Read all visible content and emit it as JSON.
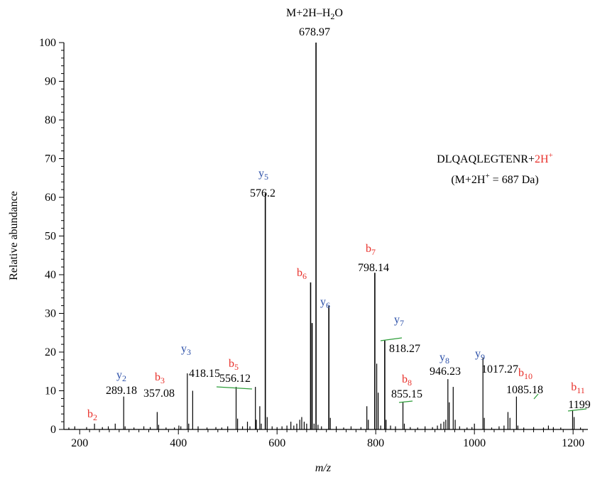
{
  "chart_data": {
    "type": "bar",
    "title": "",
    "xlabel": "m/z",
    "ylabel": "Relative abundance",
    "xlim": [
      168,
      1230
    ],
    "ylim": [
      0,
      100
    ],
    "x_ticks": [
      200,
      400,
      600,
      800,
      1000,
      1200
    ],
    "y_ticks": [
      0,
      10,
      20,
      30,
      40,
      50,
      60,
      70,
      80,
      90,
      100
    ],
    "colors": {
      "b_ion": "#e8302a",
      "y_ion": "#2b4fa8",
      "leader": "#2e9e3a",
      "peak": "#000000"
    },
    "annotations": {
      "peptide_main": "DLQAQLEGTENR+",
      "peptide_charge": "2H",
      "peptide_charge_sup": "+",
      "mass_prefix": "(M+2H",
      "mass_sup": "+",
      "mass_suffix": " = 687 Da)",
      "precursor_prefix": "M+2H–H",
      "precursor_sub": "2",
      "precursor_suffix": "O"
    },
    "labeled_peaks": [
      {
        "mz": 678.97,
        "intensity": 100,
        "label": "678.97"
      },
      {
        "mz": 576.2,
        "intensity": 61,
        "label": "576.2",
        "ion": "y",
        "ion_num": "5"
      },
      {
        "mz": 798.14,
        "intensity": 40.5,
        "label": "798.14",
        "ion": "b",
        "ion_num": "7"
      },
      {
        "mz": 668.0,
        "intensity": 38,
        "ion": "b",
        "ion_num": "6"
      },
      {
        "mz": 705.0,
        "intensity": 32,
        "ion": "y",
        "ion_num": "6"
      },
      {
        "mz": 818.27,
        "intensity": 23,
        "label": "818.27",
        "ion": "y",
        "ion_num": "7"
      },
      {
        "mz": 1017.27,
        "intensity": 18.5,
        "label": "1017.27",
        "ion": "y",
        "ion_num": "9"
      },
      {
        "mz": 946.23,
        "intensity": 13,
        "label": "946.23",
        "ion": "y",
        "ion_num": "8"
      },
      {
        "mz": 418.15,
        "intensity": 14.5,
        "label": "418.15",
        "ion": "y",
        "ion_num": "3"
      },
      {
        "mz": 556.12,
        "intensity": 11,
        "label": "556.12",
        "ion": "b",
        "ion_num": "5"
      },
      {
        "mz": 289.18,
        "intensity": 8.5,
        "label": "289.18",
        "ion": "y",
        "ion_num": "2"
      },
      {
        "mz": 1085.18,
        "intensity": 8.5,
        "label": "1085.18",
        "ion": "b",
        "ion_num": "10"
      },
      {
        "mz": 855.15,
        "intensity": 7,
        "label": "855.15",
        "ion": "b",
        "ion_num": "8"
      },
      {
        "mz": 357.08,
        "intensity": 4.5,
        "label": "357.08",
        "ion": "b",
        "ion_num": "3"
      },
      {
        "mz": 1199,
        "intensity": 5,
        "label": "1199",
        "ion": "b",
        "ion_num": "11"
      },
      {
        "mz": 230,
        "intensity": 1.5,
        "ion": "b",
        "ion_num": "2"
      }
    ],
    "peaks": [
      {
        "mz": 178,
        "intensity": 0.5
      },
      {
        "mz": 190,
        "intensity": 0.8
      },
      {
        "mz": 214,
        "intensity": 0.6
      },
      {
        "mz": 230,
        "intensity": 1.5
      },
      {
        "mz": 246,
        "intensity": 0.6
      },
      {
        "mz": 258,
        "intensity": 0.8
      },
      {
        "mz": 272,
        "intensity": 1.5
      },
      {
        "mz": 289.18,
        "intensity": 8.5
      },
      {
        "mz": 292,
        "intensity": 0.8
      },
      {
        "mz": 310,
        "intensity": 0.5
      },
      {
        "mz": 330,
        "intensity": 0.8
      },
      {
        "mz": 343,
        "intensity": 0.6
      },
      {
        "mz": 357.08,
        "intensity": 4.5
      },
      {
        "mz": 360,
        "intensity": 1.2
      },
      {
        "mz": 375,
        "intensity": 0.5
      },
      {
        "mz": 392,
        "intensity": 0.5
      },
      {
        "mz": 401,
        "intensity": 1.0
      },
      {
        "mz": 405,
        "intensity": 0.8
      },
      {
        "mz": 418.15,
        "intensity": 14.5
      },
      {
        "mz": 421,
        "intensity": 1.5
      },
      {
        "mz": 429,
        "intensity": 10
      },
      {
        "mz": 440,
        "intensity": 0.8
      },
      {
        "mz": 458,
        "intensity": 0.5
      },
      {
        "mz": 476,
        "intensity": 0.6
      },
      {
        "mz": 488,
        "intensity": 0.5
      },
      {
        "mz": 500,
        "intensity": 0.8
      },
      {
        "mz": 517,
        "intensity": 11
      },
      {
        "mz": 520,
        "intensity": 2.8
      },
      {
        "mz": 530,
        "intensity": 0.8
      },
      {
        "mz": 540,
        "intensity": 2.0
      },
      {
        "mz": 545,
        "intensity": 0.8
      },
      {
        "mz": 556.12,
        "intensity": 11
      },
      {
        "mz": 558,
        "intensity": 2.5
      },
      {
        "mz": 565,
        "intensity": 6
      },
      {
        "mz": 568,
        "intensity": 1.5
      },
      {
        "mz": 576.2,
        "intensity": 61
      },
      {
        "mz": 580,
        "intensity": 3.2
      },
      {
        "mz": 590,
        "intensity": 0.8
      },
      {
        "mz": 600,
        "intensity": 0.6
      },
      {
        "mz": 610,
        "intensity": 0.8
      },
      {
        "mz": 620,
        "intensity": 1.0
      },
      {
        "mz": 628,
        "intensity": 2.0
      },
      {
        "mz": 634,
        "intensity": 1.0
      },
      {
        "mz": 640,
        "intensity": 1.5
      },
      {
        "mz": 646,
        "intensity": 2.5
      },
      {
        "mz": 650,
        "intensity": 3.2
      },
      {
        "mz": 655,
        "intensity": 2.0
      },
      {
        "mz": 660,
        "intensity": 1.5
      },
      {
        "mz": 668,
        "intensity": 38
      },
      {
        "mz": 671,
        "intensity": 27.5
      },
      {
        "mz": 675,
        "intensity": 1.5
      },
      {
        "mz": 678.97,
        "intensity": 100
      },
      {
        "mz": 683,
        "intensity": 1.2
      },
      {
        "mz": 690,
        "intensity": 0.8
      },
      {
        "mz": 705,
        "intensity": 32
      },
      {
        "mz": 708,
        "intensity": 3.0
      },
      {
        "mz": 720,
        "intensity": 0.8
      },
      {
        "mz": 735,
        "intensity": 0.5
      },
      {
        "mz": 750,
        "intensity": 0.8
      },
      {
        "mz": 770,
        "intensity": 0.6
      },
      {
        "mz": 782,
        "intensity": 6
      },
      {
        "mz": 785,
        "intensity": 2.5
      },
      {
        "mz": 798.14,
        "intensity": 40.5
      },
      {
        "mz": 802,
        "intensity": 17
      },
      {
        "mz": 805,
        "intensity": 9.5
      },
      {
        "mz": 810,
        "intensity": 1.0
      },
      {
        "mz": 818.27,
        "intensity": 23
      },
      {
        "mz": 821,
        "intensity": 2.5
      },
      {
        "mz": 830,
        "intensity": 1.0
      },
      {
        "mz": 840,
        "intensity": 0.8
      },
      {
        "mz": 855.15,
        "intensity": 7
      },
      {
        "mz": 858,
        "intensity": 1.5
      },
      {
        "mz": 870,
        "intensity": 0.6
      },
      {
        "mz": 885,
        "intensity": 0.5
      },
      {
        "mz": 900,
        "intensity": 0.8
      },
      {
        "mz": 915,
        "intensity": 0.6
      },
      {
        "mz": 925,
        "intensity": 1.0
      },
      {
        "mz": 932,
        "intensity": 1.5
      },
      {
        "mz": 938,
        "intensity": 2.0
      },
      {
        "mz": 942,
        "intensity": 2.5
      },
      {
        "mz": 946.23,
        "intensity": 13
      },
      {
        "mz": 949,
        "intensity": 7
      },
      {
        "mz": 957,
        "intensity": 11
      },
      {
        "mz": 961,
        "intensity": 2.5
      },
      {
        "mz": 970,
        "intensity": 0.8
      },
      {
        "mz": 985,
        "intensity": 0.5
      },
      {
        "mz": 995,
        "intensity": 0.6
      },
      {
        "mz": 1000,
        "intensity": 1.5
      },
      {
        "mz": 1017.27,
        "intensity": 18.5
      },
      {
        "mz": 1020,
        "intensity": 3.0
      },
      {
        "mz": 1035,
        "intensity": 0.5
      },
      {
        "mz": 1050,
        "intensity": 0.8
      },
      {
        "mz": 1060,
        "intensity": 1.0
      },
      {
        "mz": 1068,
        "intensity": 4.5
      },
      {
        "mz": 1072,
        "intensity": 3.0
      },
      {
        "mz": 1085.18,
        "intensity": 8.5
      },
      {
        "mz": 1088,
        "intensity": 1.0
      },
      {
        "mz": 1100,
        "intensity": 0.5
      },
      {
        "mz": 1120,
        "intensity": 0.6
      },
      {
        "mz": 1140,
        "intensity": 0.5
      },
      {
        "mz": 1150,
        "intensity": 1.0
      },
      {
        "mz": 1160,
        "intensity": 0.6
      },
      {
        "mz": 1175,
        "intensity": 0.5
      },
      {
        "mz": 1199,
        "intensity": 5
      },
      {
        "mz": 1202,
        "intensity": 3.2
      },
      {
        "mz": 1215,
        "intensity": 0.5
      }
    ]
  }
}
